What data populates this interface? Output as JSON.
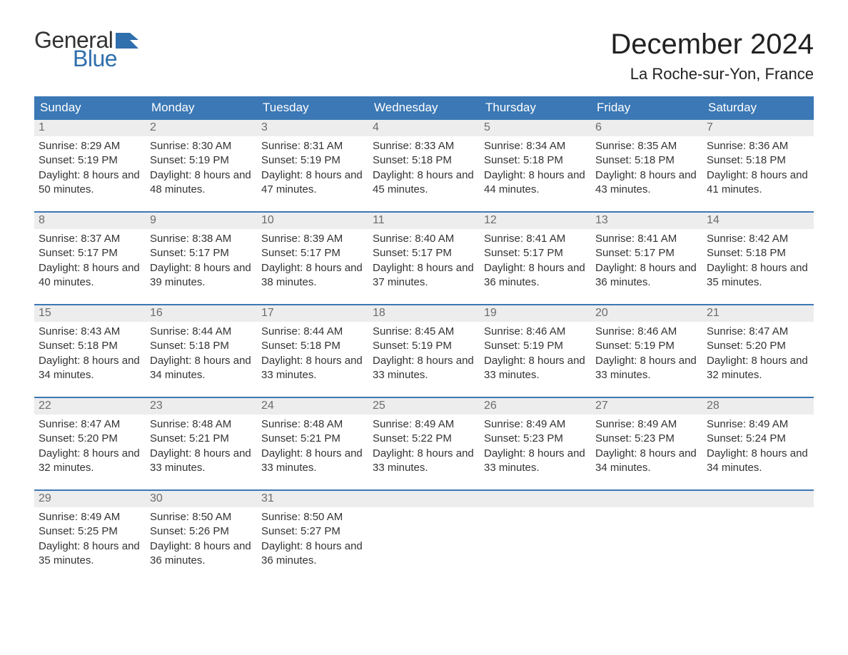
{
  "logo": {
    "word1": "General",
    "word2": "Blue",
    "color1": "#333333",
    "color2": "#2f6fad"
  },
  "title": "December 2024",
  "location": "La Roche-sur-Yon, France",
  "colors": {
    "header_bg": "#3b78b5",
    "header_text": "#ffffff",
    "daynum_bg": "#ededed",
    "daynum_text": "#6c6c6c",
    "body_text": "#333333",
    "week_border": "#3b78b5",
    "page_bg": "#ffffff"
  },
  "day_names": [
    "Sunday",
    "Monday",
    "Tuesday",
    "Wednesday",
    "Thursday",
    "Friday",
    "Saturday"
  ],
  "label_sunrise": "Sunrise:",
  "label_sunset": "Sunset:",
  "label_daylight": "Daylight:",
  "weeks": [
    [
      {
        "n": "1",
        "sunrise": "8:29 AM",
        "sunset": "5:19 PM",
        "daylight": "8 hours and 50 minutes."
      },
      {
        "n": "2",
        "sunrise": "8:30 AM",
        "sunset": "5:19 PM",
        "daylight": "8 hours and 48 minutes."
      },
      {
        "n": "3",
        "sunrise": "8:31 AM",
        "sunset": "5:19 PM",
        "daylight": "8 hours and 47 minutes."
      },
      {
        "n": "4",
        "sunrise": "8:33 AM",
        "sunset": "5:18 PM",
        "daylight": "8 hours and 45 minutes."
      },
      {
        "n": "5",
        "sunrise": "8:34 AM",
        "sunset": "5:18 PM",
        "daylight": "8 hours and 44 minutes."
      },
      {
        "n": "6",
        "sunrise": "8:35 AM",
        "sunset": "5:18 PM",
        "daylight": "8 hours and 43 minutes."
      },
      {
        "n": "7",
        "sunrise": "8:36 AM",
        "sunset": "5:18 PM",
        "daylight": "8 hours and 41 minutes."
      }
    ],
    [
      {
        "n": "8",
        "sunrise": "8:37 AM",
        "sunset": "5:17 PM",
        "daylight": "8 hours and 40 minutes."
      },
      {
        "n": "9",
        "sunrise": "8:38 AM",
        "sunset": "5:17 PM",
        "daylight": "8 hours and 39 minutes."
      },
      {
        "n": "10",
        "sunrise": "8:39 AM",
        "sunset": "5:17 PM",
        "daylight": "8 hours and 38 minutes."
      },
      {
        "n": "11",
        "sunrise": "8:40 AM",
        "sunset": "5:17 PM",
        "daylight": "8 hours and 37 minutes."
      },
      {
        "n": "12",
        "sunrise": "8:41 AM",
        "sunset": "5:17 PM",
        "daylight": "8 hours and 36 minutes."
      },
      {
        "n": "13",
        "sunrise": "8:41 AM",
        "sunset": "5:17 PM",
        "daylight": "8 hours and 36 minutes."
      },
      {
        "n": "14",
        "sunrise": "8:42 AM",
        "sunset": "5:18 PM",
        "daylight": "8 hours and 35 minutes."
      }
    ],
    [
      {
        "n": "15",
        "sunrise": "8:43 AM",
        "sunset": "5:18 PM",
        "daylight": "8 hours and 34 minutes."
      },
      {
        "n": "16",
        "sunrise": "8:44 AM",
        "sunset": "5:18 PM",
        "daylight": "8 hours and 34 minutes."
      },
      {
        "n": "17",
        "sunrise": "8:44 AM",
        "sunset": "5:18 PM",
        "daylight": "8 hours and 33 minutes."
      },
      {
        "n": "18",
        "sunrise": "8:45 AM",
        "sunset": "5:19 PM",
        "daylight": "8 hours and 33 minutes."
      },
      {
        "n": "19",
        "sunrise": "8:46 AM",
        "sunset": "5:19 PM",
        "daylight": "8 hours and 33 minutes."
      },
      {
        "n": "20",
        "sunrise": "8:46 AM",
        "sunset": "5:19 PM",
        "daylight": "8 hours and 33 minutes."
      },
      {
        "n": "21",
        "sunrise": "8:47 AM",
        "sunset": "5:20 PM",
        "daylight": "8 hours and 32 minutes."
      }
    ],
    [
      {
        "n": "22",
        "sunrise": "8:47 AM",
        "sunset": "5:20 PM",
        "daylight": "8 hours and 32 minutes."
      },
      {
        "n": "23",
        "sunrise": "8:48 AM",
        "sunset": "5:21 PM",
        "daylight": "8 hours and 33 minutes."
      },
      {
        "n": "24",
        "sunrise": "8:48 AM",
        "sunset": "5:21 PM",
        "daylight": "8 hours and 33 minutes."
      },
      {
        "n": "25",
        "sunrise": "8:49 AM",
        "sunset": "5:22 PM",
        "daylight": "8 hours and 33 minutes."
      },
      {
        "n": "26",
        "sunrise": "8:49 AM",
        "sunset": "5:23 PM",
        "daylight": "8 hours and 33 minutes."
      },
      {
        "n": "27",
        "sunrise": "8:49 AM",
        "sunset": "5:23 PM",
        "daylight": "8 hours and 34 minutes."
      },
      {
        "n": "28",
        "sunrise": "8:49 AM",
        "sunset": "5:24 PM",
        "daylight": "8 hours and 34 minutes."
      }
    ],
    [
      {
        "n": "29",
        "sunrise": "8:49 AM",
        "sunset": "5:25 PM",
        "daylight": "8 hours and 35 minutes."
      },
      {
        "n": "30",
        "sunrise": "8:50 AM",
        "sunset": "5:26 PM",
        "daylight": "8 hours and 36 minutes."
      },
      {
        "n": "31",
        "sunrise": "8:50 AM",
        "sunset": "5:27 PM",
        "daylight": "8 hours and 36 minutes."
      },
      null,
      null,
      null,
      null
    ]
  ]
}
